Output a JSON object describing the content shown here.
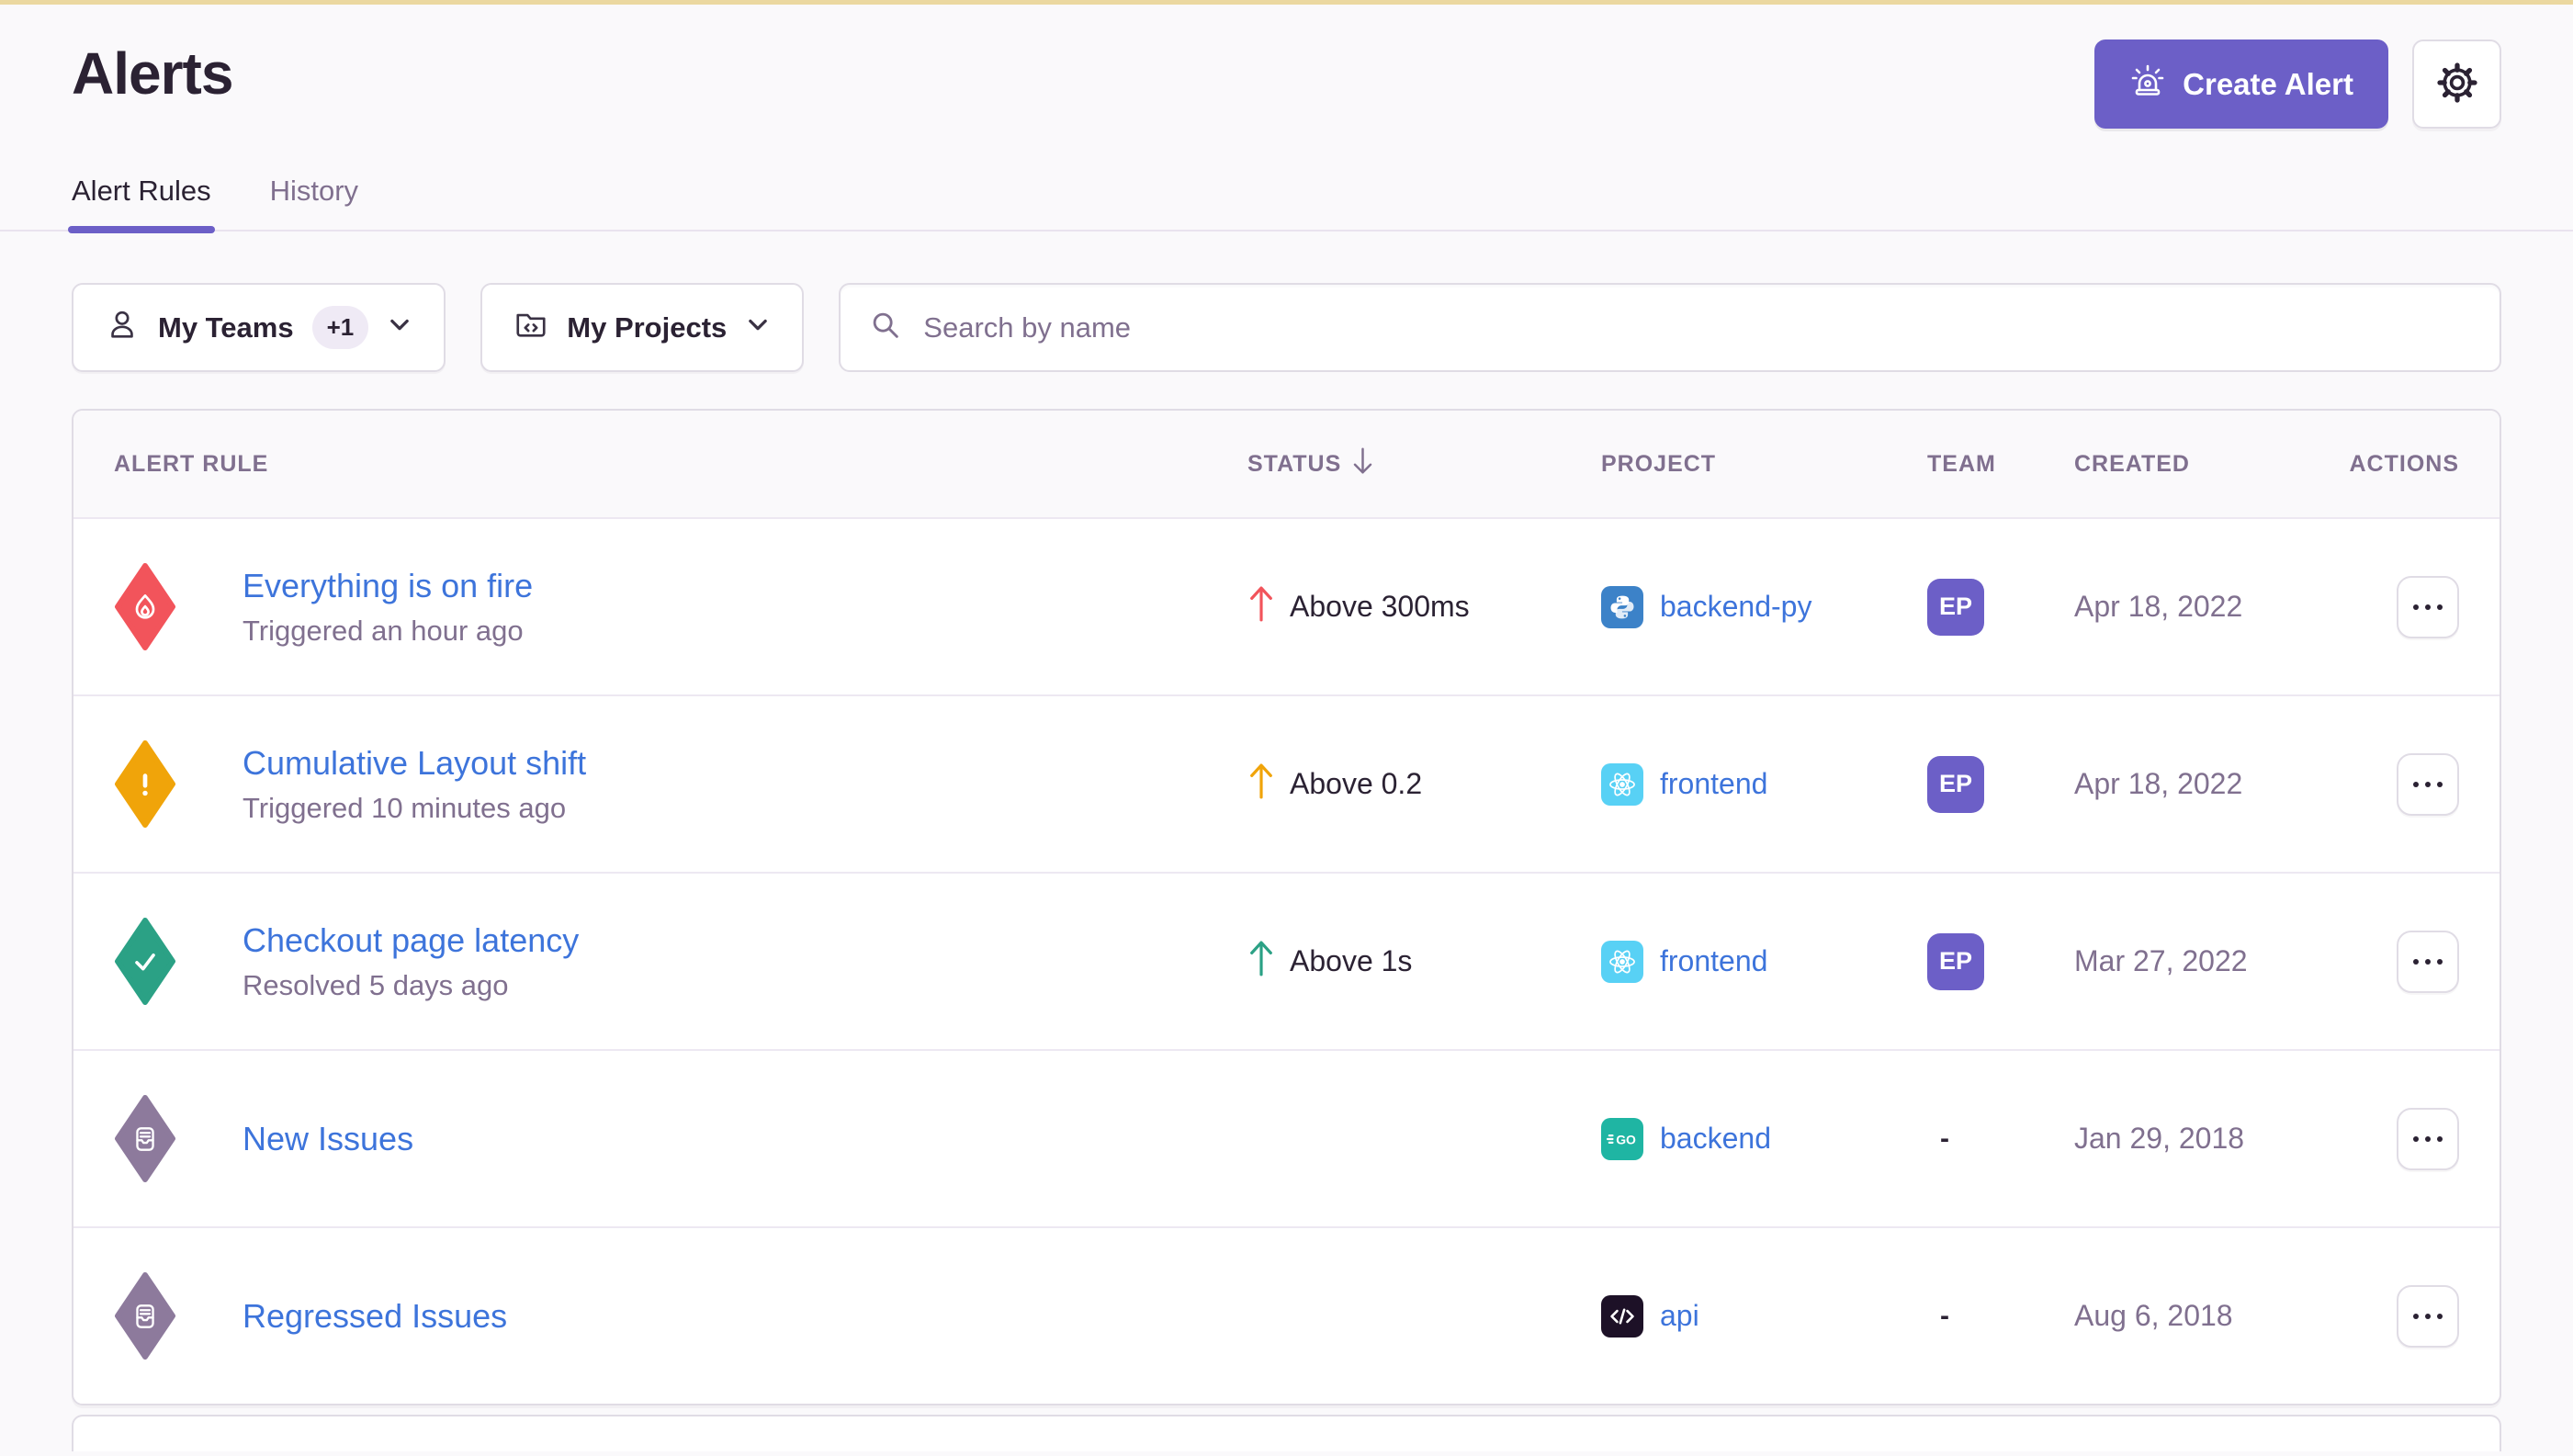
{
  "page": {
    "title": "Alerts",
    "tabs": [
      {
        "label": "Alert Rules",
        "active": true
      },
      {
        "label": "History",
        "active": false
      }
    ],
    "actions": {
      "create_alert": "Create Alert"
    }
  },
  "filters": {
    "teams": {
      "label": "My Teams",
      "badge": "+1"
    },
    "projects": {
      "label": "My Projects"
    },
    "search": {
      "placeholder": "Search by name"
    }
  },
  "table": {
    "headers": {
      "alert_rule": "Alert Rule",
      "status": "Status",
      "project": "Project",
      "team": "Team",
      "created": "Created",
      "actions": "Actions"
    },
    "sort": {
      "column": "status",
      "direction": "desc"
    },
    "rows": [
      {
        "name": "Everything is on fire",
        "activity": "Triggered an hour ago",
        "severity": "critical",
        "severity_icon": "flame-icon",
        "severity_color": "#F2545B",
        "status": "Above 300ms",
        "status_arrow_color": "#F2545B",
        "project": {
          "name": "backend-py",
          "icon": "python-icon",
          "color": "#3C82C8"
        },
        "team": "EP",
        "created": "Apr 18, 2022"
      },
      {
        "name": "Cumulative Layout shift",
        "activity": "Triggered 10 minutes ago",
        "severity": "warning",
        "severity_icon": "exclamation-icon",
        "severity_color": "#F0A40A",
        "status": "Above 0.2",
        "status_arrow_color": "#F0A40A",
        "project": {
          "name": "frontend",
          "icon": "react-icon",
          "color": "#58D1F5"
        },
        "team": "EP",
        "created": "Apr 18, 2022"
      },
      {
        "name": "Checkout page latency",
        "activity": "Resolved 5 days ago",
        "severity": "resolved",
        "severity_icon": "check-icon",
        "severity_color": "#2BA185",
        "status": "Above 1s",
        "status_arrow_color": "#2BA185",
        "project": {
          "name": "frontend",
          "icon": "react-icon",
          "color": "#58D1F5"
        },
        "team": "EP",
        "created": "Mar 27, 2022"
      },
      {
        "name": "New Issues",
        "activity": "",
        "severity": "issue",
        "severity_icon": "issue-stack-icon",
        "severity_color": "#8D7A9C",
        "status": "",
        "status_arrow_color": "",
        "project": {
          "name": "backend",
          "icon": "go-icon",
          "color": "#1FB5A3"
        },
        "team": "-",
        "created": "Jan 29, 2018"
      },
      {
        "name": "Regressed Issues",
        "activity": "",
        "severity": "issue",
        "severity_icon": "issue-stack-icon",
        "severity_color": "#8D7A9C",
        "status": "",
        "status_arrow_color": "",
        "project": {
          "name": "api",
          "icon": "code-icon",
          "color": "#1D1127"
        },
        "team": "-",
        "created": "Aug 6, 2018"
      }
    ]
  },
  "colors": {
    "accent": "#6C5FC7",
    "link": "#3D74DB",
    "critical": "#F2545B",
    "warning": "#F0A40A",
    "resolved": "#2BA185",
    "issue": "#8D7A9C",
    "top_banner": "#EBD8A0",
    "border": "#E0DCE5",
    "muted": "#80708F",
    "heading": "#2B2233"
  }
}
